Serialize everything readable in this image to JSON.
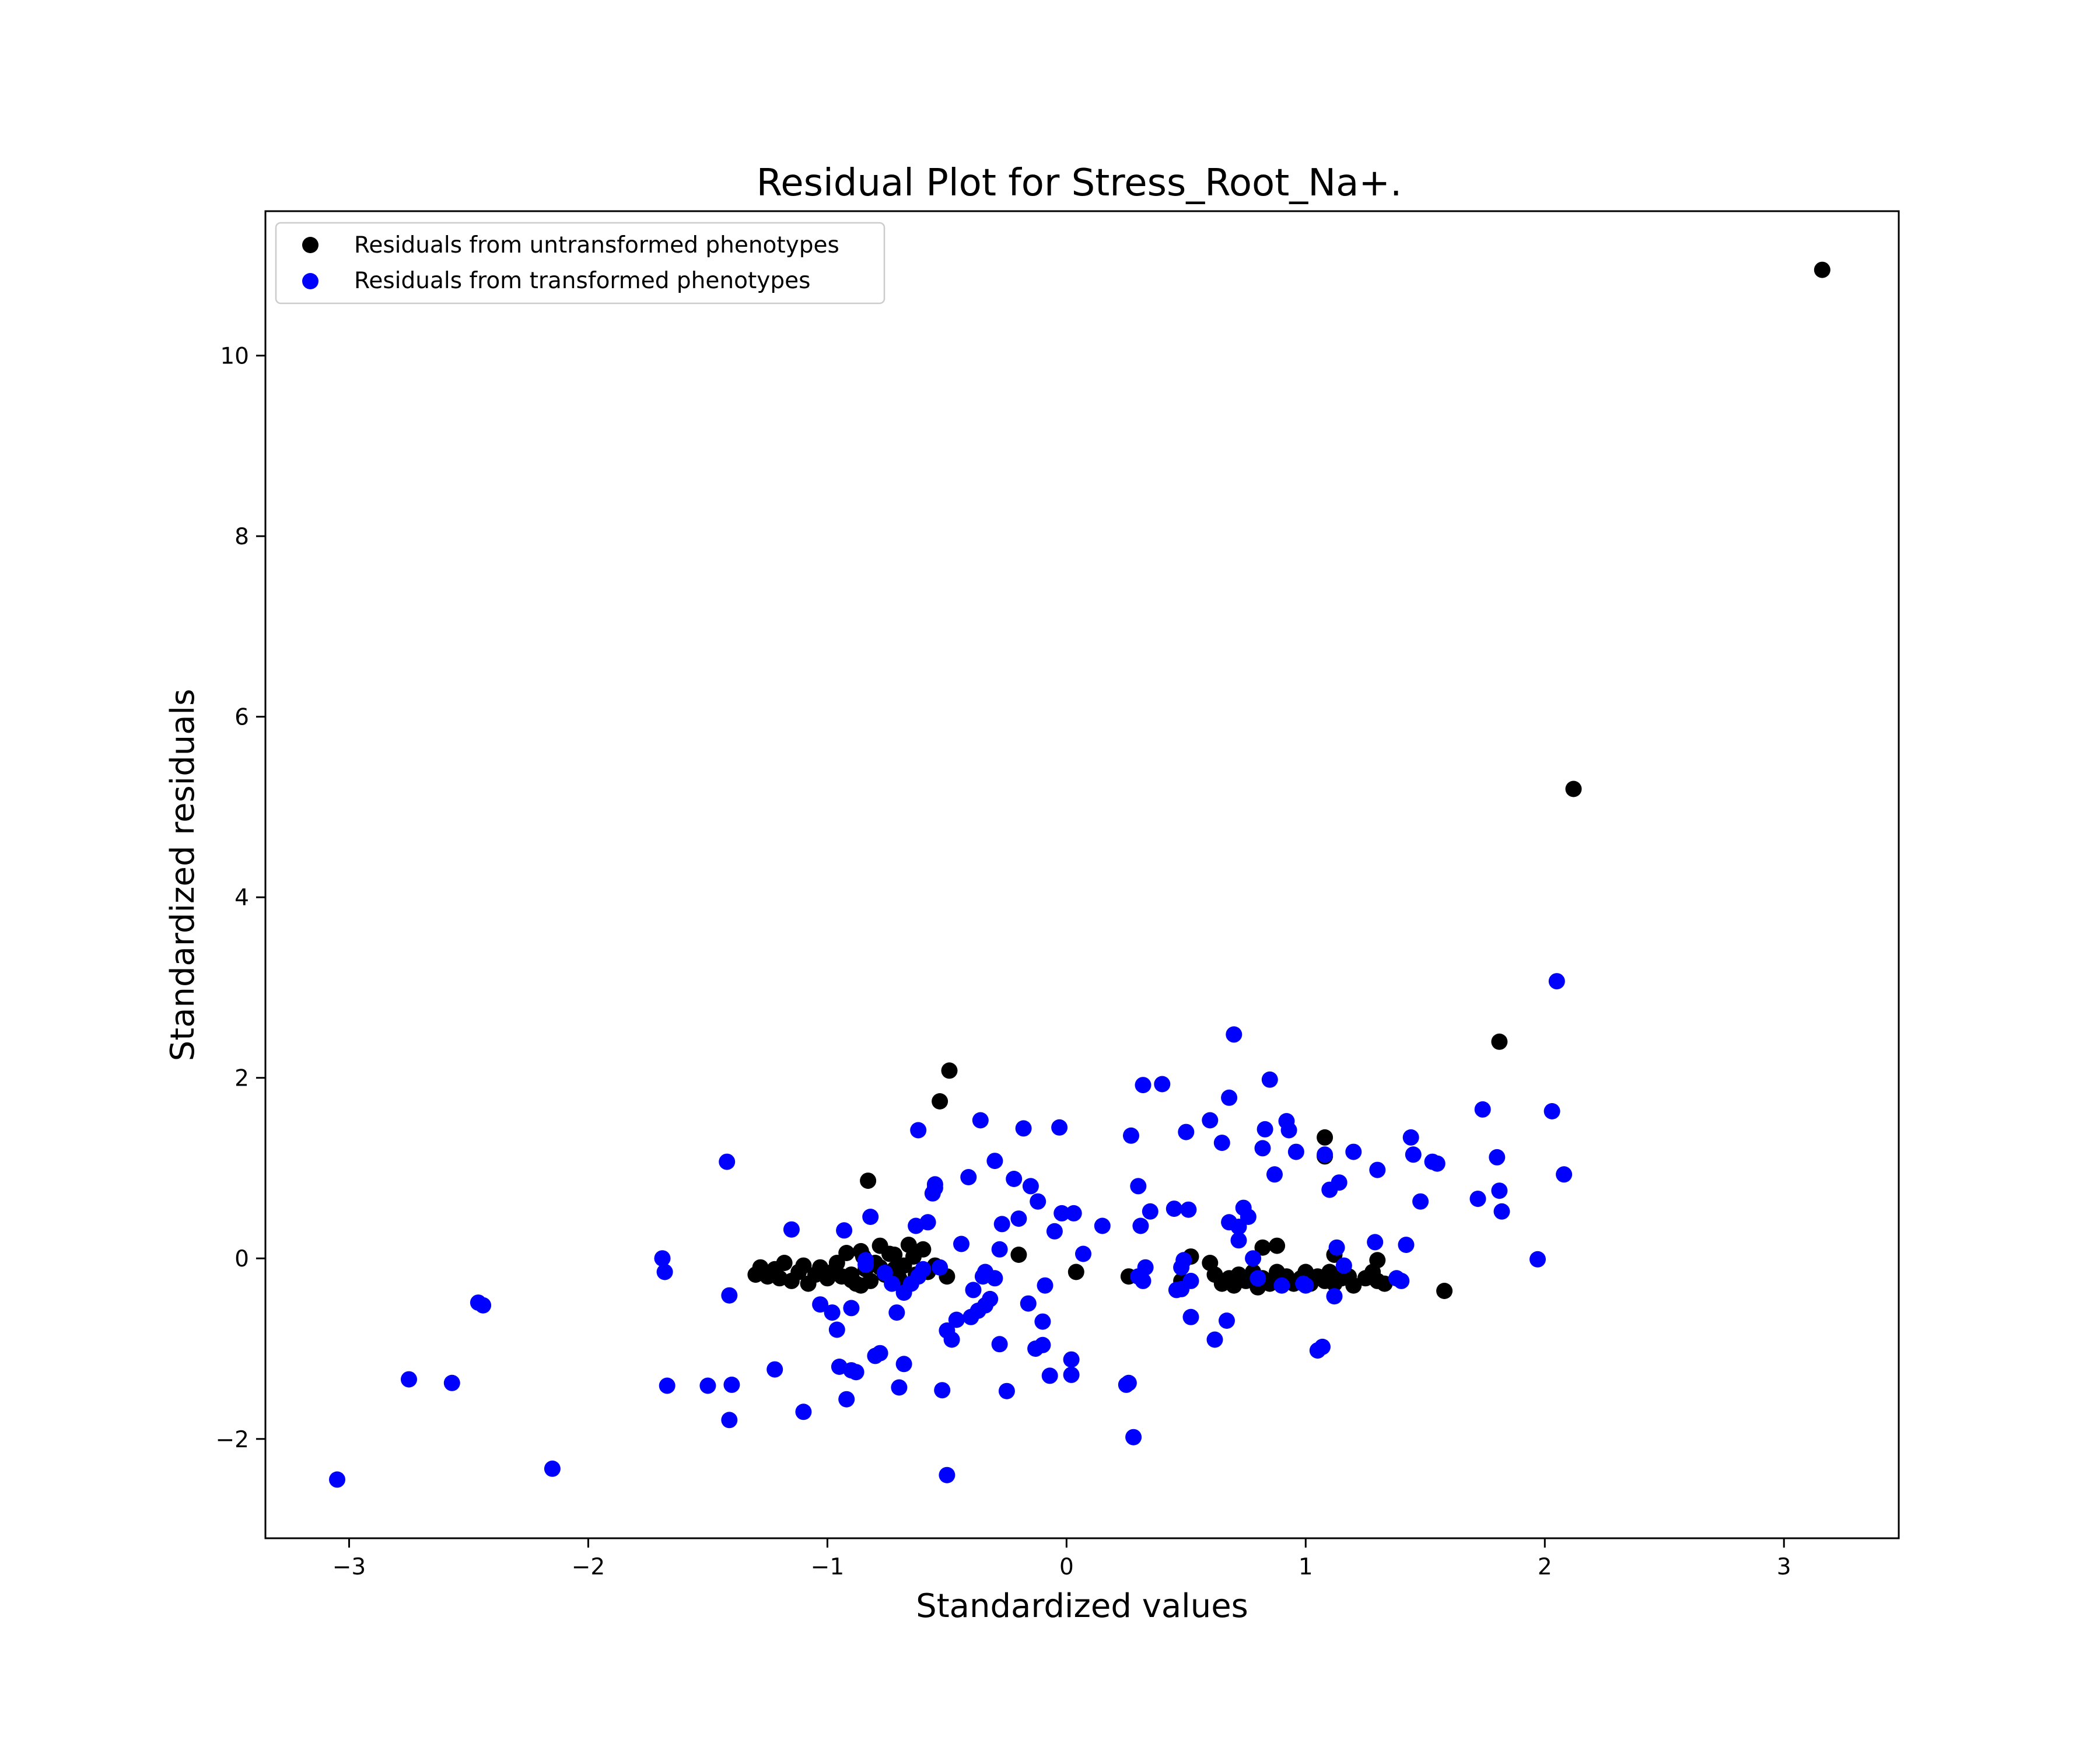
{
  "chart_data": {
    "type": "scatter",
    "title": "Residual Plot for Stress_Root_Na+.",
    "xlabel": "Standardized values",
    "ylabel": "Standardized residuals",
    "xlim": [
      -3.35,
      3.48
    ],
    "ylim": [
      -3.1,
      11.6
    ],
    "xticks": [
      -3,
      -2,
      -1,
      0,
      1,
      2,
      3
    ],
    "yticks": [
      -2,
      0,
      2,
      4,
      6,
      8,
      10
    ],
    "grid": false,
    "legend_position": "top-left",
    "series": [
      {
        "name": "Residuals from untransformed phenotypes",
        "color": "#000000",
        "x": [
          3.16,
          2.12,
          1.81,
          -0.49,
          -0.53,
          1.08,
          1.08,
          -0.83,
          1.58,
          0.04,
          -0.2,
          -1.3,
          -1.28,
          -1.25,
          -1.22,
          -1.2,
          -1.18,
          -1.15,
          -1.12,
          -1.1,
          -1.08,
          -1.05,
          -1.03,
          -1.0,
          -0.98,
          -0.96,
          -0.94,
          -0.92,
          -0.9,
          -0.88,
          -0.86,
          -0.84,
          -0.82,
          -0.8,
          -0.78,
          -0.76,
          -0.74,
          -0.72,
          -0.7,
          -0.68,
          -0.66,
          -0.64,
          -0.62,
          -0.6,
          -0.58,
          -0.55,
          -0.5,
          -0.9,
          -0.85,
          -0.78,
          -0.72,
          -0.63,
          -0.86,
          0.26,
          0.48,
          0.52,
          0.6,
          0.62,
          0.65,
          0.68,
          0.7,
          0.72,
          0.75,
          0.78,
          0.8,
          0.82,
          0.85,
          0.88,
          0.9,
          0.92,
          0.95,
          0.98,
          1.0,
          1.02,
          1.05,
          1.08,
          1.1,
          1.12,
          1.15,
          1.18,
          1.2,
          1.25,
          1.28,
          1.3,
          1.33,
          0.82,
          0.88,
          1.12,
          1.3
        ],
        "y": [
          10.95,
          5.2,
          2.4,
          2.08,
          1.74,
          1.34,
          1.13,
          0.86,
          -0.36,
          -0.15,
          0.04,
          -0.18,
          -0.1,
          -0.2,
          -0.12,
          -0.22,
          -0.05,
          -0.25,
          -0.15,
          -0.08,
          -0.28,
          -0.18,
          -0.1,
          -0.22,
          -0.15,
          -0.05,
          -0.2,
          0.06,
          -0.18,
          -0.28,
          0.08,
          -0.12,
          -0.25,
          -0.05,
          0.14,
          -0.18,
          0.05,
          -0.12,
          -0.22,
          -0.08,
          0.15,
          0.02,
          -0.2,
          0.1,
          -0.15,
          -0.08,
          -0.2,
          -0.24,
          0.02,
          -0.1,
          0.04,
          -0.18,
          -0.3,
          -0.2,
          -0.25,
          0.02,
          -0.05,
          -0.18,
          -0.28,
          -0.22,
          -0.3,
          -0.18,
          -0.25,
          -0.15,
          -0.32,
          -0.22,
          -0.28,
          -0.15,
          -0.25,
          -0.2,
          -0.28,
          -0.22,
          -0.15,
          -0.28,
          -0.2,
          -0.25,
          -0.15,
          -0.28,
          -0.22,
          -0.2,
          -0.3,
          -0.22,
          -0.15,
          -0.25,
          -0.28,
          0.12,
          0.14,
          0.04,
          -0.02
        ]
      },
      {
        "name": "Residuals from transformed phenotypes",
        "color": "#0000ff",
        "x": [
          -3.05,
          -2.75,
          -2.57,
          -2.46,
          -2.44,
          -2.15,
          -1.69,
          -1.68,
          -1.67,
          -1.5,
          -1.42,
          -1.41,
          -1.4,
          -1.41,
          -1.22,
          -1.15,
          -1.1,
          -1.03,
          -0.98,
          -0.96,
          -0.95,
          -0.93,
          -0.92,
          -0.9,
          -0.88,
          -0.9,
          -0.84,
          -0.82,
          -0.8,
          -0.78,
          -0.76,
          -0.73,
          -0.71,
          -0.7,
          -0.68,
          -0.65,
          -0.63,
          -0.62,
          -0.58,
          -0.56,
          -0.55,
          -0.53,
          -0.52,
          -0.5,
          -0.5,
          -0.48,
          -0.46,
          -0.44,
          -0.41,
          -0.4,
          -0.39,
          -0.37,
          -0.36,
          -0.35,
          -0.34,
          -0.32,
          -0.3,
          -0.28,
          -0.27,
          -0.25,
          -0.22,
          -0.2,
          -0.18,
          -0.16,
          -0.15,
          -0.13,
          -0.12,
          -0.1,
          -0.1,
          -0.09,
          -0.07,
          -0.05,
          -0.03,
          -0.02,
          0.02,
          0.02,
          0.03,
          0.07,
          0.15,
          0.25,
          0.26,
          0.27,
          0.28,
          0.3,
          0.31,
          0.32,
          0.32,
          0.33,
          0.35,
          0.4,
          0.45,
          0.48,
          0.48,
          0.49,
          0.5,
          0.51,
          0.52,
          0.6,
          0.62,
          0.65,
          0.67,
          0.68,
          0.68,
          0.7,
          0.72,
          0.74,
          0.76,
          0.78,
          0.82,
          0.83,
          0.85,
          0.87,
          0.92,
          0.93,
          0.96,
          0.99,
          1.05,
          1.07,
          1.08,
          1.1,
          1.12,
          1.13,
          1.14,
          1.16,
          1.2,
          1.29,
          1.3,
          1.38,
          1.42,
          1.44,
          1.45,
          1.48,
          1.53,
          1.55,
          1.72,
          1.74,
          1.8,
          1.81,
          1.82,
          1.97,
          2.03,
          2.05,
          2.08,
          -0.62,
          -0.34,
          -0.84,
          -0.68,
          -0.55,
          -0.3,
          0.52,
          0.9,
          1.0,
          0.8,
          0.3,
          -0.6,
          -0.28,
          0.46,
          0.72,
          1.4
        ],
        "y": [
          -2.45,
          -1.34,
          -1.38,
          -0.49,
          -0.52,
          -2.33,
          0.0,
          -0.15,
          -1.41,
          -1.41,
          1.07,
          -1.79,
          -1.4,
          -0.41,
          -1.23,
          0.32,
          -1.7,
          -0.51,
          -0.6,
          -0.79,
          -1.2,
          0.31,
          -1.56,
          -1.24,
          -1.26,
          -0.55,
          -0.07,
          0.46,
          -1.08,
          -1.05,
          -0.16,
          -0.28,
          -0.6,
          -1.43,
          -1.17,
          -0.28,
          0.36,
          1.42,
          0.4,
          0.72,
          0.78,
          -0.1,
          -1.46,
          -2.4,
          -0.8,
          -0.9,
          -0.68,
          0.16,
          0.9,
          -0.65,
          -0.35,
          -0.58,
          1.53,
          -0.2,
          -0.52,
          -0.45,
          1.08,
          -0.95,
          0.38,
          -1.47,
          0.88,
          0.44,
          1.44,
          -0.5,
          0.8,
          -1.0,
          0.63,
          -0.7,
          -0.96,
          -0.3,
          -1.3,
          0.3,
          1.45,
          0.5,
          -1.12,
          -1.29,
          0.5,
          0.05,
          0.36,
          -1.4,
          -1.38,
          1.36,
          -1.98,
          0.8,
          0.36,
          -0.25,
          1.92,
          -0.1,
          0.52,
          1.93,
          0.55,
          -0.34,
          -0.1,
          -0.02,
          1.4,
          0.54,
          -0.65,
          1.53,
          -0.9,
          1.28,
          -0.69,
          0.4,
          1.78,
          2.48,
          0.2,
          0.56,
          0.46,
          0.0,
          1.22,
          1.43,
          1.98,
          0.93,
          1.52,
          1.42,
          1.18,
          -0.28,
          -1.02,
          -0.98,
          1.15,
          0.76,
          -0.42,
          0.12,
          0.84,
          -0.08,
          1.18,
          0.18,
          0.98,
          -0.22,
          0.15,
          1.34,
          1.15,
          0.63,
          1.07,
          1.05,
          0.66,
          1.65,
          1.12,
          0.75,
          0.52,
          -0.01,
          1.63,
          3.07,
          0.93,
          -0.2,
          -0.15,
          -0.02,
          -0.38,
          0.82,
          -0.22,
          -0.25,
          -0.3,
          -0.3,
          -0.22,
          -0.2,
          -0.12,
          0.1,
          -0.35,
          0.35,
          -0.25
        ]
      }
    ]
  }
}
